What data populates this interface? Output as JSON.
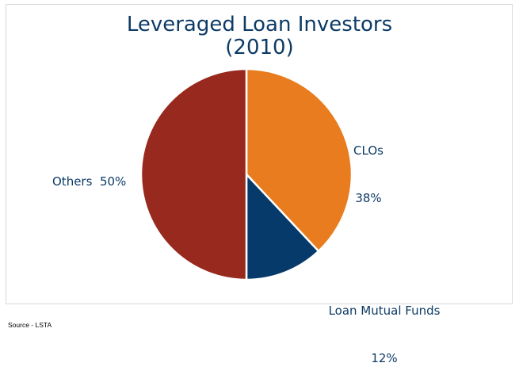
{
  "chart_data": {
    "type": "pie",
    "title": "Leveraged Loan Investors",
    "subtitle": "(2010)",
    "categories": [
      "CLOs",
      "Loan Mutual Funds",
      "Others"
    ],
    "values": [
      38,
      12,
      50
    ],
    "value_labels": [
      "38%",
      "12%",
      "50%"
    ],
    "colors": [
      "#e87c1e",
      "#063a6b",
      "#98291f"
    ],
    "start": "top",
    "direction": "clockwise"
  },
  "source": "Source - LSTA"
}
